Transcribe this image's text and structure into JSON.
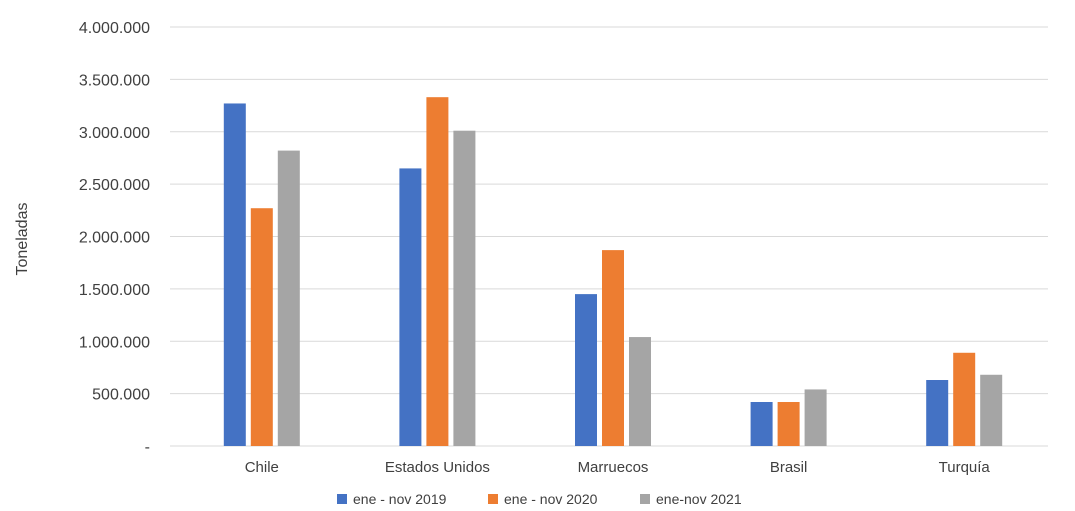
{
  "chart_data": {
    "type": "bar",
    "title": "",
    "xlabel": "",
    "ylabel": "Toneladas",
    "ylim": [
      0,
      4000000
    ],
    "yticks": [
      "-",
      "500.000",
      "1.000.000",
      "1.500.000",
      "2.000.000",
      "2.500.000",
      "3.000.000",
      "3.500.000",
      "4.000.000"
    ],
    "ytick_values": [
      0,
      500000,
      1000000,
      1500000,
      2000000,
      2500000,
      3000000,
      3500000,
      4000000
    ],
    "grid": true,
    "legend_position": "bottom",
    "categories": [
      "Chile",
      "Estados Unidos",
      "Marruecos",
      "Brasil",
      "Turquía"
    ],
    "series": [
      {
        "name": "ene - nov 2019",
        "color": "#4472C4",
        "values": [
          3270000,
          2650000,
          1450000,
          420000,
          630000
        ]
      },
      {
        "name": "ene - nov 2020",
        "color": "#ED7D31",
        "values": [
          2270000,
          3330000,
          1870000,
          420000,
          890000
        ]
      },
      {
        "name": "ene-nov 2021",
        "color": "#A5A5A5",
        "values": [
          2820000,
          3010000,
          1040000,
          540000,
          680000
        ]
      }
    ]
  }
}
